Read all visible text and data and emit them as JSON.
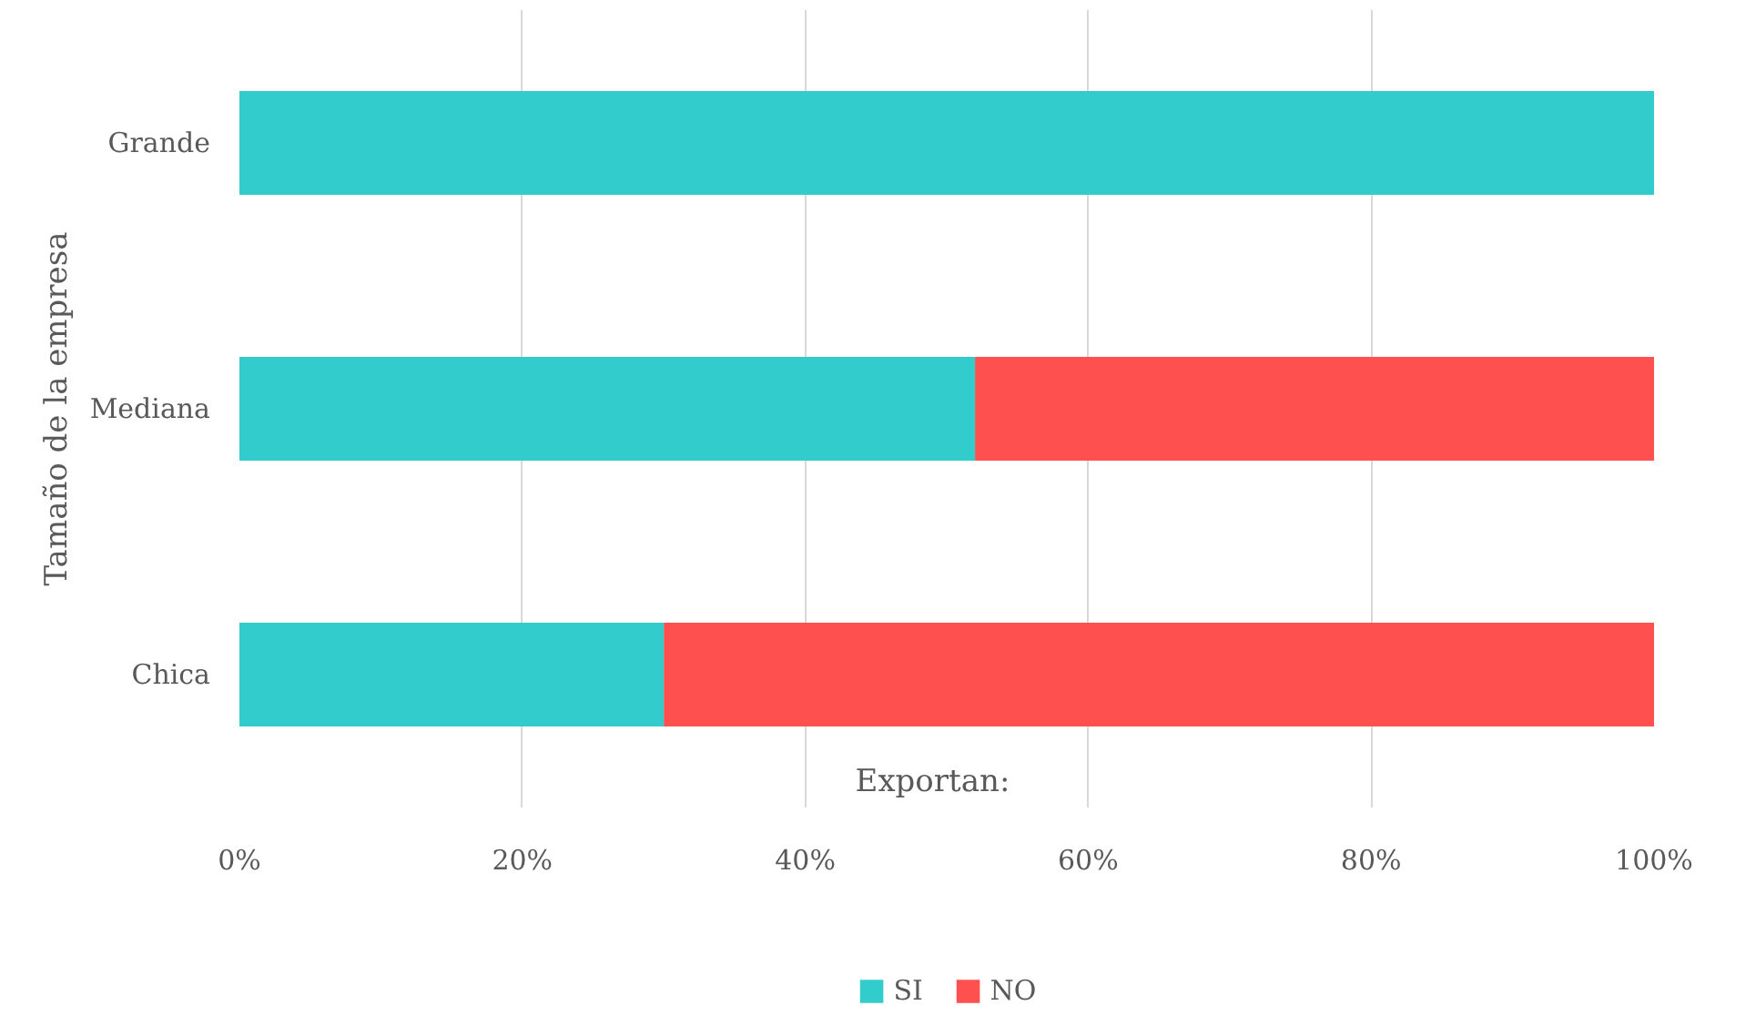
{
  "chart_data": {
    "type": "bar",
    "orientation": "horizontal",
    "stacked": true,
    "ylabel": "Tamaño de la empresa",
    "legend_title": "Exportan:",
    "categories": [
      "Grande",
      "Mediana",
      "Chica"
    ],
    "series": [
      {
        "name": "SI",
        "color": "#33cccc",
        "values": [
          100,
          52,
          30
        ]
      },
      {
        "name": "NO",
        "color": "#ff5050",
        "values": [
          0,
          48,
          70
        ]
      }
    ],
    "xlim": [
      0,
      100
    ],
    "xticks": [
      {
        "value": 0,
        "label": "0%"
      },
      {
        "value": 20,
        "label": "20%"
      },
      {
        "value": 40,
        "label": "40%"
      },
      {
        "value": 60,
        "label": "60%"
      },
      {
        "value": 80,
        "label": "80%"
      },
      {
        "value": 100,
        "label": "100%"
      }
    ],
    "grid": "x",
    "legend": "bottom"
  }
}
